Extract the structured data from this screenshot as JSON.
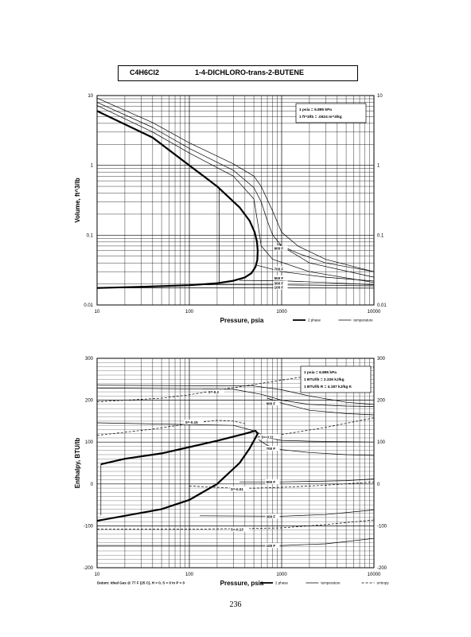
{
  "title": {
    "formula": "C4H6Cl2",
    "name": "1-4-DICHLORO-trans-2-BUTENE"
  },
  "page_number": "236",
  "chart_data": [
    {
      "type": "line",
      "xlabel": "Pressure,  psia",
      "ylabel": "Volume,  ft^3/lb",
      "x_scale": "log",
      "y_scale": "log",
      "xlim": [
        10,
        10000
      ],
      "ylim": [
        0.01,
        10
      ],
      "x_ticks": [
        "10",
        "100",
        "1000",
        "10000"
      ],
      "y_ticks": [
        "0.01",
        "0.1",
        "1",
        "10"
      ],
      "grid": true,
      "conversions": [
        "1 psia = 6.895 kPa",
        "1 ft^3/lb = .0624 m^3/kg"
      ],
      "legend": [
        "2 phase",
        "temperature"
      ],
      "series": [
        {
          "kind": "2 phase",
          "points": [
            [
              10,
              0.0175
            ],
            [
              30,
              0.0182
            ],
            [
              100,
              0.0192
            ],
            [
              200,
              0.0205
            ],
            [
              300,
              0.0222
            ],
            [
              400,
              0.0248
            ],
            [
              470,
              0.0285
            ],
            [
              520,
              0.035
            ],
            [
              545,
              0.044
            ],
            [
              550,
              0.06
            ],
            [
              540,
              0.08
            ],
            [
              510,
              0.11
            ],
            [
              450,
              0.16
            ],
            [
              350,
              0.25
            ],
            [
              200,
              0.5
            ],
            [
              100,
              1.0
            ],
            [
              40,
              2.5
            ],
            [
              10,
              6
            ]
          ]
        },
        {
          "kind": "temperature",
          "label": "",
          "points": [
            [
              10,
              7.2
            ],
            [
              40,
              3.0
            ],
            [
              100,
              1.5
            ],
            [
              300,
              0.7
            ],
            [
              500,
              0.33
            ],
            [
              560,
              0.13
            ],
            [
              600,
              0.07
            ],
            [
              800,
              0.045
            ],
            [
              2000,
              0.03
            ],
            [
              10000,
              0.021
            ]
          ]
        },
        {
          "kind": "temperature",
          "label": "",
          "points": [
            [
              10,
              8.0
            ],
            [
              40,
              3.5
            ],
            [
              100,
              1.75
            ],
            [
              300,
              0.85
            ],
            [
              500,
              0.48
            ],
            [
              600,
              0.3
            ],
            [
              700,
              0.16
            ],
            [
              800,
              0.1
            ],
            [
              1000,
              0.07
            ],
            [
              2000,
              0.04
            ],
            [
              10000,
              0.025
            ]
          ]
        },
        {
          "kind": "temperature",
          "label": "",
          "points": [
            [
              10,
              9.2
            ],
            [
              40,
              4.1
            ],
            [
              100,
              2.1
            ],
            [
              300,
              1.05
            ],
            [
              500,
              0.7
            ],
            [
              600,
              0.5
            ],
            [
              800,
              0.22
            ],
            [
              1000,
              0.11
            ],
            [
              1500,
              0.07
            ],
            [
              3000,
              0.045
            ],
            [
              10000,
              0.03
            ]
          ]
        },
        {
          "kind": "temperature",
          "label": "900 F",
          "label_at": [
            830,
            0.065
          ],
          "points": [
            [
              900,
              0.075
            ],
            [
              1500,
              0.055
            ],
            [
              3000,
              0.04
            ],
            [
              10000,
              0.03
            ]
          ]
        },
        {
          "kind": "temperature",
          "label": "700 F",
          "label_at": [
            830,
            0.033
          ],
          "points": [
            [
              540,
              0.037
            ],
            [
              1000,
              0.03
            ],
            [
              3000,
              0.025
            ],
            [
              10000,
              0.022
            ]
          ]
        },
        {
          "kind": "temperature",
          "label": "500 F",
          "label_at": [
            830,
            0.0245
          ],
          "points": [
            [
              350,
              0.0225
            ],
            [
              1000,
              0.0222
            ],
            [
              3000,
              0.021
            ],
            [
              10000,
              0.0195
            ]
          ]
        },
        {
          "kind": "temperature",
          "label": "300 F",
          "label_at": [
            830,
            0.0205
          ],
          "points": [
            [
              120,
              0.0195
            ],
            [
              1000,
              0.0194
            ],
            [
              10000,
              0.0188
            ]
          ]
        },
        {
          "kind": "temperature",
          "label": "100 F",
          "label_at": [
            830,
            0.018
          ],
          "points": [
            [
              10,
              0.0176
            ],
            [
              1000,
              0.0176
            ],
            [
              10000,
              0.0174
            ]
          ]
        },
        {
          "kind": "temperature",
          "label": "",
          "points": [
            [
              210,
              0.47
            ],
            [
              210,
              0.0208
            ]
          ]
        }
      ]
    },
    {
      "type": "line",
      "xlabel": "Pressure,  psia",
      "ylabel": "Enthalpy,  BTU/lb",
      "x_scale": "log",
      "y_scale": "linear",
      "xlim": [
        10,
        10000
      ],
      "ylim": [
        -200,
        300
      ],
      "x_ticks": [
        "10",
        "100",
        "1000",
        "10000"
      ],
      "y_ticks": [
        "-200",
        "-100",
        "0",
        "100",
        "200",
        "300"
      ],
      "grid": true,
      "conversions": [
        "1 psia = 6.895 kPa",
        "1 BTU/lb = 2.326 kJ/kg",
        "1 BTU/lb R = 4.187 kJ/kg K"
      ],
      "legend": [
        "2 phase",
        "temperature",
        "entropy"
      ],
      "footnote": "Datum: Ideal Gas @ 77 F (25 C),  H = 0,  S = 0 in P = 0",
      "series": [
        {
          "kind": "2 phase",
          "points": [
            [
              10,
              -88
            ],
            [
              50,
              -60
            ],
            [
              100,
              -38
            ],
            [
              200,
              0
            ],
            [
              350,
              50
            ],
            [
              450,
              85
            ],
            [
              520,
              110
            ],
            [
              550,
              120
            ],
            [
              520,
              127
            ],
            [
              400,
              120
            ],
            [
              200,
              103
            ],
            [
              100,
              88
            ],
            [
              50,
              73
            ],
            [
              20,
              60
            ],
            [
              11,
              47
            ]
          ]
        },
        {
          "kind": "temperature",
          "points": [
            [
              11,
              47
            ],
            [
              11,
              -75
            ]
          ]
        },
        {
          "kind": "temperature",
          "points": [
            [
              100,
              90
            ],
            [
              100,
              -37
            ]
          ]
        },
        {
          "kind": "temperature",
          "points": [
            [
              10,
              236
            ],
            [
              500,
              234
            ],
            [
              1000,
              225
            ],
            [
              2000,
              210
            ],
            [
              5000,
              195
            ],
            [
              10000,
              190
            ]
          ]
        },
        {
          "kind": "temperature",
          "points": [
            [
              10,
              229
            ],
            [
              300,
              226
            ],
            [
              600,
              214
            ],
            [
              1000,
              200
            ],
            [
              2000,
              190
            ],
            [
              5000,
              186
            ],
            [
              10000,
              185
            ]
          ]
        },
        {
          "kind": "temperature",
          "points": [
            [
              10,
              146
            ],
            [
              300,
              140
            ],
            [
              520,
              126
            ],
            [
              700,
              110
            ],
            [
              1000,
              104
            ],
            [
              2000,
              102
            ],
            [
              10000,
              100
            ]
          ]
        },
        {
          "kind": "temperature",
          "label": "900 F",
          "label_at": [
            680,
            193
          ],
          "points": [
            [
              700,
              205
            ],
            [
              1000,
              193
            ],
            [
              2000,
              176
            ],
            [
              5000,
              168
            ],
            [
              10000,
              165
            ]
          ]
        },
        {
          "kind": "temperature",
          "label": "700 F",
          "label_at": [
            680,
            85
          ],
          "points": [
            [
              560,
              106
            ],
            [
              700,
              92
            ],
            [
              1000,
              82
            ],
            [
              2000,
              75
            ],
            [
              5000,
              70
            ],
            [
              10000,
              68
            ]
          ]
        },
        {
          "kind": "temperature",
          "label": "500 F",
          "label_at": [
            680,
            5
          ],
          "points": [
            [
              350,
              5
            ],
            [
              1000,
              5
            ],
            [
              2000,
              6
            ],
            [
              5000,
              8
            ],
            [
              10000,
              12
            ]
          ]
        },
        {
          "kind": "temperature",
          "label": "300 F",
          "label_at": [
            680,
            -77
          ],
          "points": [
            [
              130,
              -76
            ],
            [
              1000,
              -77
            ],
            [
              3000,
              -73
            ],
            [
              10000,
              -62
            ]
          ]
        },
        {
          "kind": "temperature",
          "label": "100 F",
          "label_at": [
            680,
            -147
          ],
          "points": [
            [
              10,
              -147
            ],
            [
              1000,
              -147
            ],
            [
              3000,
              -143
            ],
            [
              10000,
              -130
            ]
          ]
        },
        {
          "kind": "entropy",
          "label": "S=-0.2",
          "label_at": [
            160,
            220
          ],
          "points": [
            [
              10,
              196
            ],
            [
              50,
              205
            ],
            [
              100,
              213
            ],
            [
              200,
              224
            ],
            [
              400,
              234
            ],
            [
              1000,
              248
            ],
            [
              3000,
              264
            ],
            [
              10000,
              278
            ]
          ]
        },
        {
          "kind": "entropy",
          "label": "S=-0.15",
          "label_at": [
            90,
            148
          ],
          "points": [
            [
              10,
              116
            ],
            [
              40,
              131
            ],
            [
              100,
              144
            ],
            [
              200,
              152
            ],
            [
              300,
              150
            ],
            [
              400,
              144
            ]
          ]
        },
        {
          "kind": "entropy",
          "label": "S=-0.11",
          "label_at": [
            600,
            113
          ],
          "points": [
            [
              550,
              112
            ],
            [
              1000,
              118
            ],
            [
              3000,
              135
            ],
            [
              10000,
              158
            ]
          ]
        },
        {
          "kind": "entropy",
          "label": "S=-0.01",
          "label_at": [
            280,
            -12
          ],
          "points": [
            [
              100,
              -5
            ],
            [
              200,
              -8
            ],
            [
              300,
              -10
            ],
            [
              500,
              -10
            ],
            [
              1000,
              -8
            ],
            [
              3000,
              -3
            ],
            [
              10000,
              5
            ]
          ]
        },
        {
          "kind": "entropy",
          "label": "S=-0.13",
          "label_at": [
            280,
            -108
          ],
          "points": [
            [
              10,
              -108
            ],
            [
              100,
              -108
            ],
            [
              1000,
              -105
            ],
            [
              3000,
              -97
            ],
            [
              10000,
              -86
            ]
          ]
        }
      ]
    }
  ]
}
